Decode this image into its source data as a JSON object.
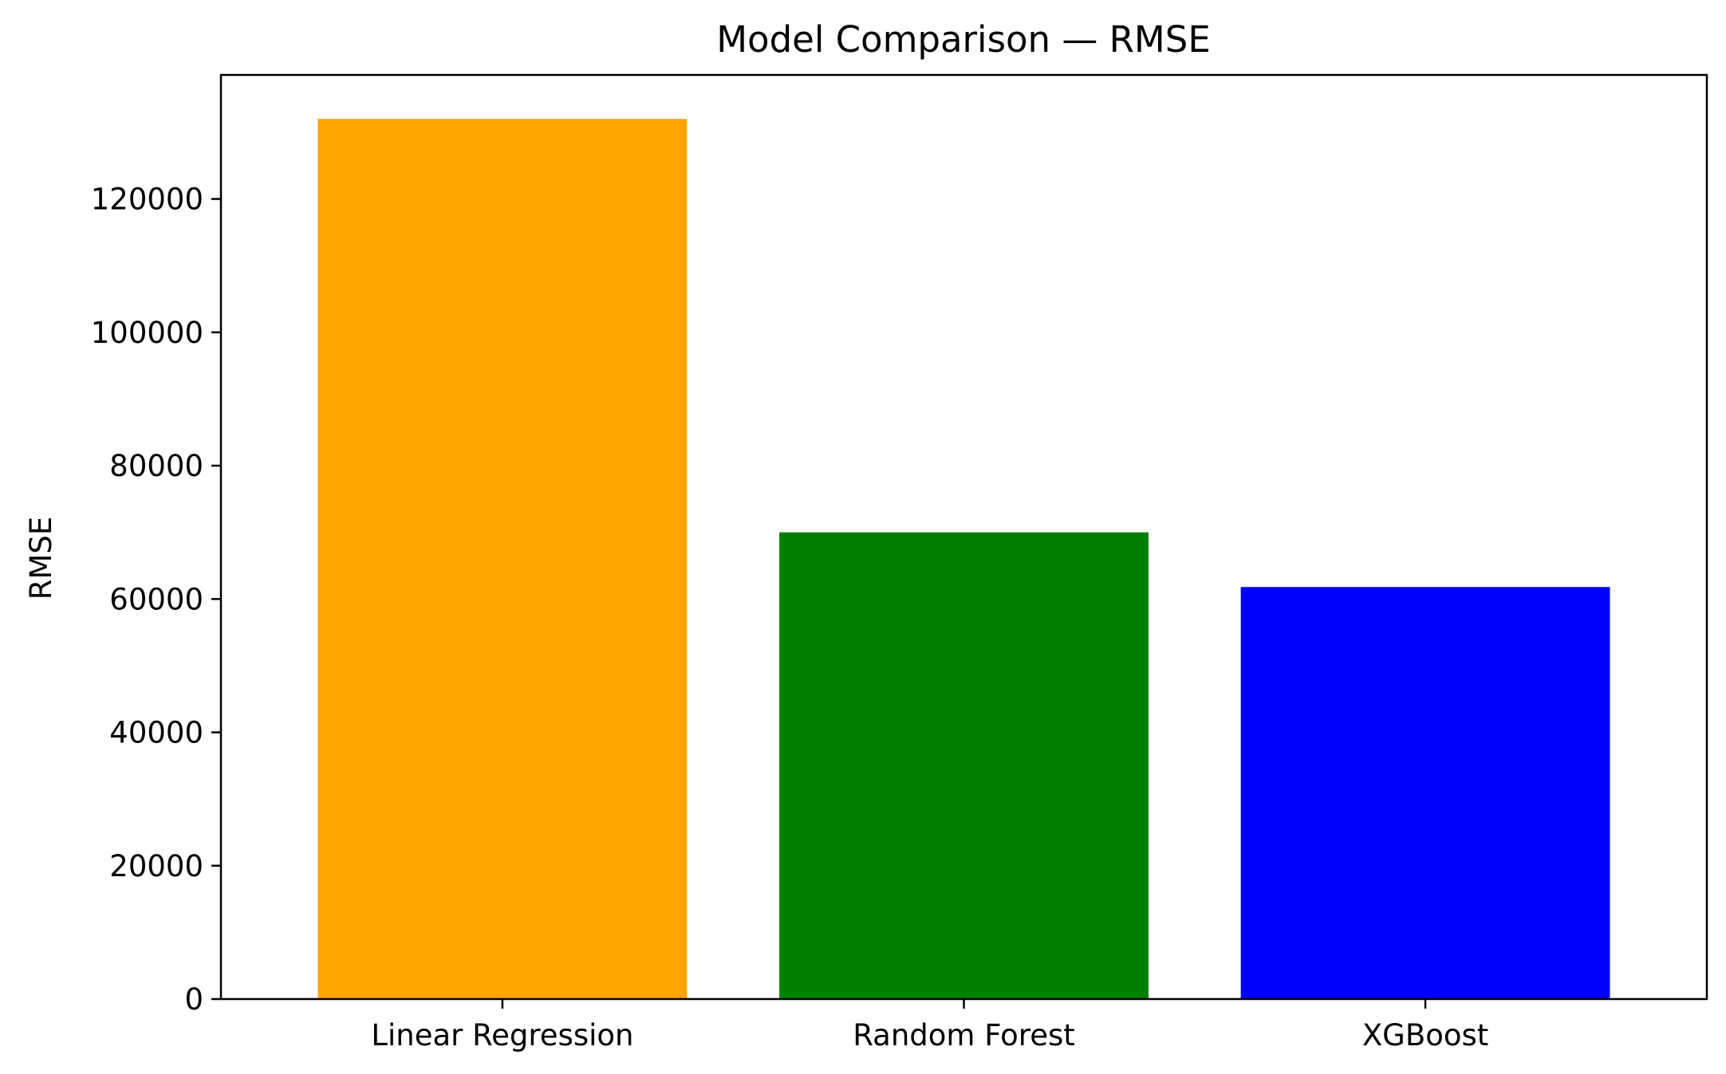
{
  "chart_data": {
    "type": "bar",
    "title": "Model Comparison — RMSE",
    "xlabel": "",
    "ylabel": "RMSE",
    "categories": [
      "Linear Regression",
      "Random Forest",
      "XGBoost"
    ],
    "values": [
      132000,
      70000,
      61800
    ],
    "colors": [
      "#ffa500",
      "#008000",
      "#0000ff"
    ],
    "ylim": [
      0,
      138600
    ],
    "yticks": [
      0,
      20000,
      40000,
      60000,
      80000,
      100000,
      120000
    ],
    "grid": false,
    "legend": false
  }
}
